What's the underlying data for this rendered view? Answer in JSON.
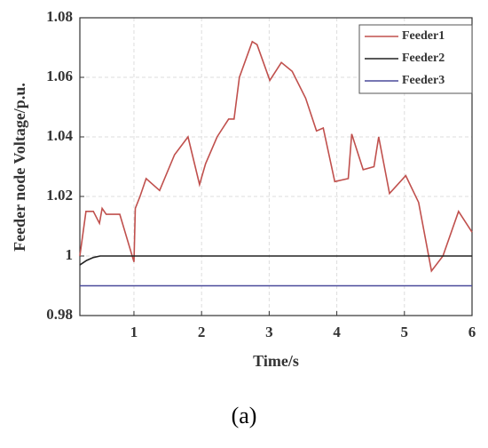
{
  "chart_data": {
    "type": "line",
    "xlabel": "Time/s",
    "ylabel": "Feeder node Voltage/p.u.",
    "xlim": [
      0.2,
      6
    ],
    "xticks": [
      1,
      2,
      3,
      4,
      5,
      6
    ],
    "ylim": [
      0.98,
      1.08
    ],
    "yticks": [
      0.98,
      1,
      1.02,
      1.04,
      1.06,
      1.08
    ],
    "grid": true,
    "legend": "upper right",
    "series": [
      {
        "name": "Feeder1",
        "color": "#c0504d",
        "x": [
          0.2,
          0.29,
          0.4,
          0.49,
          0.53,
          0.59,
          0.79,
          1.0,
          1.02,
          1.09,
          1.18,
          1.38,
          1.6,
          1.8,
          1.97,
          2.06,
          2.23,
          2.4,
          2.48,
          2.56,
          2.75,
          2.82,
          3.01,
          3.18,
          3.34,
          3.54,
          3.7,
          3.8,
          3.97,
          4.17,
          4.22,
          4.39,
          4.55,
          4.62,
          4.78,
          5.02,
          5.21,
          5.4,
          5.57,
          5.8,
          6.0
        ],
        "values": [
          1.0,
          1.015,
          1.015,
          1.011,
          1.016,
          1.014,
          1.014,
          0.998,
          1.016,
          1.02,
          1.026,
          1.022,
          1.034,
          1.04,
          1.024,
          1.031,
          1.04,
          1.046,
          1.046,
          1.06,
          1.072,
          1.071,
          1.059,
          1.065,
          1.062,
          1.053,
          1.042,
          1.043,
          1.025,
          1.026,
          1.041,
          1.029,
          1.03,
          1.04,
          1.021,
          1.027,
          1.018,
          0.995,
          1.0,
          1.015,
          1.008
        ]
      },
      {
        "name": "Feeder2",
        "color": "#222222",
        "x": [
          0.2,
          0.3,
          0.4,
          0.5,
          6.0
        ],
        "values": [
          0.997,
          0.9985,
          0.9995,
          1.0,
          1.0
        ]
      },
      {
        "name": "Feeder3",
        "color": "#4a4a9a",
        "x": [
          0.2,
          6.0
        ],
        "values": [
          0.99,
          0.99
        ]
      }
    ]
  },
  "caption": "(a)"
}
